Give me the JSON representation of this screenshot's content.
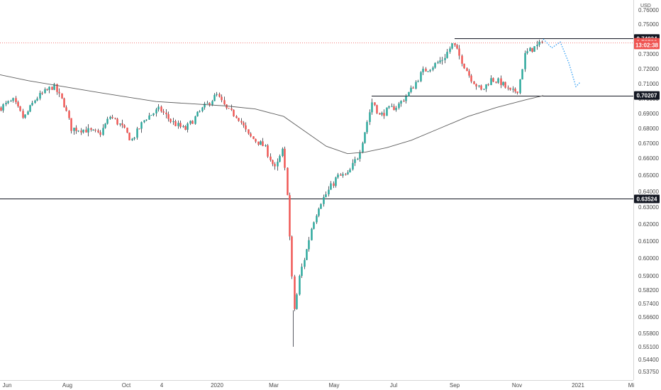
{
  "chart_data": {
    "type": "candlestick",
    "currency": "USD",
    "y_range": [
      0.5335,
      0.7636
    ],
    "y_ticks": [
      "0.76000",
      "0.75000",
      "0.74000",
      "0.73000",
      "0.72000",
      "0.71000",
      "0.70000",
      "0.69000",
      "0.68000",
      "0.67000",
      "0.66000",
      "0.65000",
      "0.64000",
      "0.63000",
      "0.62000",
      "0.61000",
      "0.60000",
      "0.59000",
      "0.58200",
      "0.57400",
      "0.56600",
      "0.55800",
      "0.55100",
      "0.54400",
      "0.53750"
    ],
    "x_ticks": [
      "Jun",
      "Aug",
      "Oct",
      "4",
      "2020",
      "Mar",
      "May",
      "Jul",
      "Sep",
      "Nov",
      "2021",
      "Mi"
    ],
    "price_tags": [
      {
        "label": "0.74034",
        "value": 0.74034,
        "color": "#131722"
      },
      {
        "label": "0.73782",
        "value": 0.73782,
        "color": "#ef5350"
      },
      {
        "label": "13:02:38",
        "value": 0.73602,
        "color": "#ef5350"
      },
      {
        "label": "0.70207",
        "value": 0.70207,
        "color": "#131722"
      },
      {
        "label": "0.63524",
        "value": 0.63524,
        "color": "#131722"
      }
    ],
    "horizontal_levels": [
      {
        "value": 0.74034,
        "from": "Sep",
        "to": "end"
      },
      {
        "value": 0.70207,
        "from": "Jun",
        "to": "end"
      },
      {
        "value": 0.63524,
        "from": "start",
        "to": "end"
      }
    ],
    "current_price_line": 0.73782,
    "candle_range": {
      "start": 0.694,
      "end": 0.7378,
      "count": 224
    },
    "moving_average_color": "#5d5d5d",
    "up_color": "#26a69a",
    "down_color": "#ef5350",
    "projection_color": "#2196f3"
  }
}
